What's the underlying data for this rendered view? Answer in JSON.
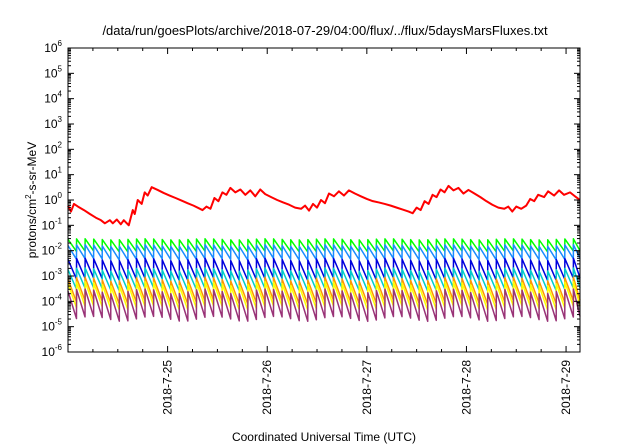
{
  "chart_data": {
    "type": "line",
    "title": "/data/run/goesPlots/archive/2018-07-29/04:00/flux/../flux/5daysMarsFluxes.txt",
    "xlabel": "Coordinated Universal Time (UTC)",
    "ylabel": {
      "base": "protons/cm",
      "sup": "2",
      "rest": "-s-sr-MeV"
    },
    "y_scale": "log",
    "ylim_exponents": [
      -6,
      6
    ],
    "y_ticks": [
      {
        "base": "10",
        "exp": "-6"
      },
      {
        "base": "10",
        "exp": "-5"
      },
      {
        "base": "10",
        "exp": "-4"
      },
      {
        "base": "10",
        "exp": "-3"
      },
      {
        "base": "10",
        "exp": "-2"
      },
      {
        "base": "10",
        "exp": "-1"
      },
      {
        "base": "10",
        "exp": "0"
      },
      {
        "base": "10",
        "exp": "1"
      },
      {
        "base": "10",
        "exp": "2"
      },
      {
        "base": "10",
        "exp": "3"
      },
      {
        "base": "10",
        "exp": "4"
      },
      {
        "base": "10",
        "exp": "5"
      },
      {
        "base": "10",
        "exp": "6"
      }
    ],
    "x_range_days": [
      0,
      5.14
    ],
    "x_ticks": [
      {
        "label": "2018-7-25",
        "day": 1
      },
      {
        "label": "2018-7-26",
        "day": 2
      },
      {
        "label": "2018-7-27",
        "day": 3
      },
      {
        "label": "2018-7-28",
        "day": 4
      },
      {
        "label": "2018-7-29",
        "day": 5
      }
    ],
    "grid": false,
    "legend": "none",
    "series": [
      {
        "color": "#ff0000",
        "points": [
          [
            0.0,
            0.6
          ],
          [
            0.03,
            0.35
          ],
          [
            0.06,
            0.7
          ],
          [
            0.1,
            0.55
          ],
          [
            0.16,
            0.4
          ],
          [
            0.22,
            0.28
          ],
          [
            0.28,
            0.2
          ],
          [
            0.33,
            0.16
          ],
          [
            0.37,
            0.12
          ],
          [
            0.42,
            0.16
          ],
          [
            0.45,
            0.12
          ],
          [
            0.49,
            0.17
          ],
          [
            0.53,
            0.11
          ],
          [
            0.56,
            0.16
          ],
          [
            0.61,
            0.1
          ],
          [
            0.65,
            0.4
          ],
          [
            0.67,
            0.28
          ],
          [
            0.7,
            1.0
          ],
          [
            0.74,
            0.7
          ],
          [
            0.77,
            2.0
          ],
          [
            0.8,
            1.5
          ],
          [
            0.84,
            3.2
          ],
          [
            0.9,
            2.5
          ],
          [
            0.96,
            1.9
          ],
          [
            1.02,
            1.5
          ],
          [
            1.08,
            1.2
          ],
          [
            1.14,
            0.95
          ],
          [
            1.2,
            0.75
          ],
          [
            1.26,
            0.6
          ],
          [
            1.31,
            0.48
          ],
          [
            1.35,
            0.4
          ],
          [
            1.39,
            0.55
          ],
          [
            1.43,
            0.45
          ],
          [
            1.47,
            1.2
          ],
          [
            1.51,
            0.9
          ],
          [
            1.55,
            2.0
          ],
          [
            1.59,
            1.6
          ],
          [
            1.63,
            3.0
          ],
          [
            1.68,
            2.0
          ],
          [
            1.73,
            2.6
          ],
          [
            1.78,
            1.6
          ],
          [
            1.83,
            2.4
          ],
          [
            1.88,
            1.4
          ],
          [
            1.93,
            2.6
          ],
          [
            1.98,
            1.7
          ],
          [
            2.04,
            1.3
          ],
          [
            2.1,
            1.0
          ],
          [
            2.16,
            0.8
          ],
          [
            2.22,
            0.65
          ],
          [
            2.28,
            0.5
          ],
          [
            2.34,
            0.45
          ],
          [
            2.38,
            0.6
          ],
          [
            2.42,
            0.38
          ],
          [
            2.46,
            0.7
          ],
          [
            2.5,
            0.5
          ],
          [
            2.54,
            1.0
          ],
          [
            2.58,
            0.75
          ],
          [
            2.62,
            1.8
          ],
          [
            2.67,
            1.4
          ],
          [
            2.72,
            2.2
          ],
          [
            2.77,
            1.5
          ],
          [
            2.82,
            2.4
          ],
          [
            2.88,
            1.8
          ],
          [
            2.94,
            1.4
          ],
          [
            3.0,
            1.1
          ],
          [
            3.06,
            0.9
          ],
          [
            3.12,
            0.8
          ],
          [
            3.18,
            0.7
          ],
          [
            3.24,
            0.6
          ],
          [
            3.3,
            0.5
          ],
          [
            3.36,
            0.42
          ],
          [
            3.42,
            0.35
          ],
          [
            3.46,
            0.3
          ],
          [
            3.5,
            0.5
          ],
          [
            3.54,
            0.4
          ],
          [
            3.58,
            0.9
          ],
          [
            3.62,
            0.7
          ],
          [
            3.66,
            1.6
          ],
          [
            3.7,
            1.3
          ],
          [
            3.74,
            2.6
          ],
          [
            3.78,
            2.0
          ],
          [
            3.82,
            3.6
          ],
          [
            3.87,
            2.4
          ],
          [
            3.92,
            3.0
          ],
          [
            3.97,
            1.8
          ],
          [
            4.02,
            2.5
          ],
          [
            4.08,
            1.8
          ],
          [
            4.14,
            1.3
          ],
          [
            4.2,
            0.9
          ],
          [
            4.26,
            0.65
          ],
          [
            4.32,
            0.5
          ],
          [
            4.38,
            0.45
          ],
          [
            4.42,
            0.55
          ],
          [
            4.46,
            0.35
          ],
          [
            4.5,
            0.55
          ],
          [
            4.55,
            0.45
          ],
          [
            4.6,
            0.6
          ],
          [
            4.64,
            1.1
          ],
          [
            4.68,
            0.9
          ],
          [
            4.72,
            1.6
          ],
          [
            4.78,
            1.3
          ],
          [
            4.82,
            2.2
          ],
          [
            4.88,
            1.5
          ],
          [
            4.93,
            2.4
          ],
          [
            4.98,
            1.6
          ],
          [
            5.04,
            2.0
          ],
          [
            5.1,
            1.3
          ],
          [
            5.14,
            1.0
          ]
        ]
      },
      {
        "color": "#00ff00",
        "base": 0.028,
        "drop": 3.0,
        "period": 0.085,
        "drift": 0.05
      },
      {
        "color": "#1a8cff",
        "base": 0.016,
        "drop": 3.5,
        "period": 0.085,
        "drift": 0.08
      },
      {
        "color": "#0000dd",
        "base": 0.0045,
        "drop": 6.0,
        "period": 0.085,
        "drift": 0.12
      },
      {
        "color": "#00cccc",
        "base": 0.0018,
        "drop": 6.0,
        "period": 0.085,
        "drift": 0.15
      },
      {
        "color": "#ff9900",
        "base": 0.00075,
        "drop": 8.0,
        "period": 0.085,
        "drift": 0.18
      },
      {
        "color": "#ffff00",
        "base": 0.0005,
        "drop": 9.0,
        "period": 0.085,
        "drift": 0.2
      },
      {
        "color": "#993377",
        "base": 0.00025,
        "drop": 12.0,
        "period": 0.085,
        "drift": 0.22
      }
    ]
  }
}
